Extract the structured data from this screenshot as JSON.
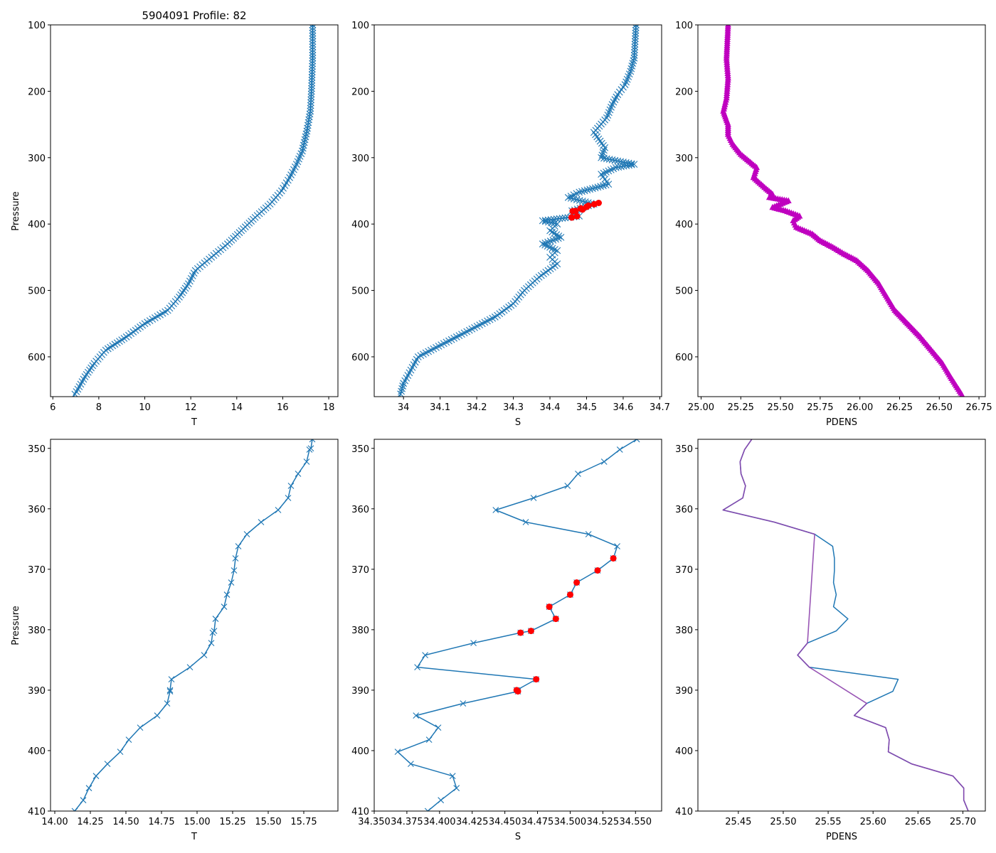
{
  "figure_title": "5904091 Profile: 82",
  "colors": {
    "series_blue": "#1f77b4",
    "red_points": "#ff0000",
    "magenta": "#bf00bf",
    "purple_line": "#8e44ad"
  },
  "chart_data": [
    {
      "id": "p1",
      "type": "line",
      "title": "5904091 Profile: 82",
      "xlabel": "T",
      "ylabel": "Pressure",
      "xlim": [
        5.9,
        18.4
      ],
      "ylim": [
        660,
        100
      ],
      "xticks": [
        6,
        8,
        10,
        12,
        14,
        16,
        18
      ],
      "yticks": [
        100,
        200,
        300,
        400,
        500,
        600
      ],
      "marker": "x",
      "series": [
        {
          "name": "T",
          "pressure": [
            100,
            150,
            200,
            230,
            260,
            290,
            310,
            330,
            350,
            370,
            390,
            410,
            430,
            450,
            470,
            490,
            510,
            530,
            550,
            570,
            590,
            610,
            630,
            660
          ],
          "values": [
            17.3,
            17.3,
            17.25,
            17.2,
            17.05,
            16.85,
            16.6,
            16.3,
            15.95,
            15.45,
            14.8,
            14.2,
            13.6,
            12.9,
            12.2,
            11.9,
            11.5,
            11.0,
            10.0,
            9.2,
            8.3,
            7.8,
            7.4,
            6.9
          ]
        }
      ]
    },
    {
      "id": "p2",
      "type": "line",
      "title": "",
      "xlabel": "S",
      "ylabel": "",
      "xlim": [
        33.92,
        34.705
      ],
      "ylim": [
        660,
        100
      ],
      "xticks": [
        34.0,
        34.1,
        34.2,
        34.3,
        34.4,
        34.5,
        34.6,
        34.7
      ],
      "yticks": [
        100,
        200,
        300,
        400,
        500,
        600
      ],
      "marker": "x",
      "series": [
        {
          "name": "S",
          "pressure": [
            100,
            150,
            170,
            190,
            205,
            220,
            240,
            262,
            285,
            300,
            310,
            315,
            325,
            340,
            352,
            360,
            370,
            380,
            388,
            395,
            400,
            410,
            420,
            430,
            440,
            450,
            460,
            480,
            500,
            520,
            540,
            560,
            580,
            600,
            620,
            640,
            660
          ],
          "values": [
            34.635,
            34.63,
            34.62,
            34.605,
            34.585,
            34.57,
            34.555,
            34.52,
            34.55,
            34.54,
            34.63,
            34.58,
            34.54,
            34.56,
            34.48,
            34.45,
            34.52,
            34.46,
            34.48,
            34.38,
            34.42,
            34.4,
            34.43,
            34.38,
            34.42,
            34.4,
            34.42,
            34.37,
            34.33,
            34.3,
            34.25,
            34.18,
            34.11,
            34.04,
            34.02,
            34.0,
            33.99
          ]
        },
        {
          "name": "red points",
          "pressure": [
            368.2,
            370.2,
            372.2,
            374.2,
            376.2,
            378.2,
            380.2,
            380.5,
            388.2,
            390.0,
            390.2
          ],
          "values": [
            34.533,
            34.521,
            34.505,
            34.5,
            34.484,
            34.489,
            34.47,
            34.462,
            34.474,
            34.459,
            34.46
          ]
        }
      ]
    },
    {
      "id": "p3",
      "type": "line",
      "title": "",
      "xlabel": "PDENS",
      "ylabel": "",
      "xlim": [
        24.98,
        26.79
      ],
      "ylim": [
        660,
        100
      ],
      "xticks": [
        25.0,
        25.25,
        25.5,
        25.75,
        26.0,
        26.25,
        26.5,
        26.75
      ],
      "xtick_labels": [
        "25.00",
        "25.25",
        "25.50",
        "25.75",
        "26.00",
        "26.25",
        "26.50",
        "26.75"
      ],
      "yticks": [
        100,
        200,
        300,
        400,
        500,
        600
      ],
      "marker": "^",
      "series": [
        {
          "name": "PDENS",
          "pressure": [
            100,
            150,
            180,
            210,
            230,
            250,
            265,
            280,
            295,
            305,
            315,
            330,
            345,
            355,
            360,
            365,
            375,
            380,
            388,
            395,
            405,
            415,
            425,
            435,
            445,
            455,
            470,
            490,
            510,
            530,
            550,
            570,
            590,
            610,
            630,
            660
          ],
          "values": [
            25.17,
            25.16,
            25.17,
            25.16,
            25.14,
            25.17,
            25.17,
            25.2,
            25.25,
            25.3,
            25.35,
            25.33,
            25.4,
            25.45,
            25.43,
            25.55,
            25.45,
            25.53,
            25.62,
            25.58,
            25.6,
            25.7,
            25.75,
            25.83,
            25.9,
            25.98,
            26.05,
            26.12,
            26.17,
            26.22,
            26.3,
            26.38,
            26.45,
            26.52,
            26.57,
            26.65
          ]
        }
      ]
    },
    {
      "id": "p4",
      "type": "line",
      "title": "",
      "xlabel": "T",
      "ylabel": "Pressure",
      "xlim": [
        13.97,
        15.99
      ],
      "ylim": [
        410,
        348.5
      ],
      "xticks": [
        14.0,
        14.25,
        14.5,
        14.75,
        15.0,
        15.25,
        15.5,
        15.75
      ],
      "xtick_labels": [
        "14.00",
        "14.25",
        "14.50",
        "14.75",
        "15.00",
        "15.25",
        "15.50",
        "15.75"
      ],
      "yticks": [
        350,
        360,
        370,
        380,
        390,
        400,
        410
      ],
      "marker": "x",
      "series": [
        {
          "name": "T",
          "pressure": [
            348.5,
            350.0,
            350.2,
            352.2,
            354.2,
            356.2,
            358.2,
            360.2,
            362.2,
            364.2,
            366.2,
            368.2,
            370.2,
            372.2,
            374.2,
            376.2,
            378.2,
            380.2,
            380.5,
            382.2,
            384.2,
            386.2,
            388.2,
            390.0,
            390.2,
            392.2,
            394.2,
            396.2,
            398.2,
            400.2,
            402.2,
            404.2,
            406.2,
            408.2,
            410.0
          ],
          "values": [
            15.81,
            15.8,
            15.79,
            15.77,
            15.71,
            15.66,
            15.64,
            15.57,
            15.45,
            15.35,
            15.29,
            15.27,
            15.26,
            15.24,
            15.21,
            15.19,
            15.13,
            15.12,
            15.11,
            15.1,
            15.05,
            14.95,
            14.82,
            14.81,
            14.81,
            14.79,
            14.72,
            14.6,
            14.52,
            14.46,
            14.37,
            14.29,
            14.24,
            14.2,
            14.14
          ]
        }
      ]
    },
    {
      "id": "p5",
      "type": "line",
      "title": "",
      "xlabel": "S",
      "ylabel": "",
      "xlim": [
        34.35,
        34.57
      ],
      "ylim": [
        410,
        348.5
      ],
      "xticks": [
        34.35,
        34.375,
        34.4,
        34.425,
        34.45,
        34.475,
        34.5,
        34.525,
        34.55
      ],
      "xtick_labels": [
        "34.350",
        "34.375",
        "34.400",
        "34.425",
        "34.450",
        "34.475",
        "34.500",
        "34.525",
        "34.550"
      ],
      "yticks": [
        350,
        360,
        370,
        380,
        390,
        400,
        410
      ],
      "marker": "x",
      "series": [
        {
          "name": "S",
          "pressure": [
            348.5,
            350.2,
            352.2,
            354.2,
            356.2,
            358.2,
            360.2,
            362.2,
            364.2,
            366.2,
            368.2,
            370.2,
            372.2,
            374.2,
            376.2,
            378.2,
            380.2,
            380.5,
            382.2,
            384.2,
            386.2,
            388.2,
            390.0,
            390.2,
            392.2,
            394.2,
            396.2,
            398.2,
            400.2,
            402.2,
            404.2,
            406.2,
            408.2,
            410.0
          ],
          "values": [
            34.551,
            34.538,
            34.526,
            34.506,
            34.498,
            34.472,
            34.443,
            34.466,
            34.514,
            34.536,
            34.533,
            34.521,
            34.505,
            34.5,
            34.484,
            34.489,
            34.47,
            34.462,
            34.426,
            34.389,
            34.383,
            34.474,
            34.459,
            34.46,
            34.418,
            34.382,
            34.399,
            34.392,
            34.368,
            34.378,
            34.41,
            34.413,
            34.401,
            34.391
          ]
        },
        {
          "name": "red points",
          "pressure": [
            368.2,
            370.2,
            372.2,
            374.2,
            376.2,
            378.2,
            380.2,
            380.5,
            388.2,
            390.0,
            390.2
          ],
          "values": [
            34.533,
            34.521,
            34.505,
            34.5,
            34.484,
            34.489,
            34.47,
            34.462,
            34.474,
            34.459,
            34.46
          ]
        }
      ]
    },
    {
      "id": "p6",
      "type": "line",
      "title": "",
      "xlabel": "PDENS",
      "ylabel": "",
      "xlim": [
        25.405,
        25.725
      ],
      "ylim": [
        410,
        348.5
      ],
      "xticks": [
        25.45,
        25.5,
        25.55,
        25.6,
        25.65,
        25.7
      ],
      "xtick_labels": [
        "25.45",
        "25.50",
        "25.55",
        "25.60",
        "25.65",
        "25.70"
      ],
      "yticks": [
        350,
        360,
        370,
        380,
        390,
        400,
        410
      ],
      "marker": "none",
      "series": [
        {
          "name": "PDENS",
          "pressure": [
            348.5,
            350.2,
            352.2,
            354.2,
            356.2,
            358.2,
            360.2,
            362.2,
            364.2,
            366.2,
            368.2,
            370.2,
            372.2,
            374.2,
            376.2,
            378.2,
            380.2,
            382.2,
            384.2,
            386.2,
            388.2,
            390.2,
            392.2,
            394.2,
            396.2,
            398.2,
            400.2,
            402.2,
            404.2,
            406.2,
            408.2,
            410.0
          ],
          "values": [
            25.465,
            25.457,
            25.452,
            25.453,
            25.458,
            25.455,
            25.433,
            25.49,
            25.535,
            25.555,
            25.557,
            25.557,
            25.556,
            25.559,
            25.556,
            25.572,
            25.559,
            25.527,
            25.516,
            25.529,
            25.628,
            25.622,
            25.593,
            25.579,
            25.614,
            25.618,
            25.617,
            25.643,
            25.689,
            25.701,
            25.701,
            25.706
          ]
        },
        {
          "name": "overlay",
          "pressure": [
            348.5,
            350.2,
            352.2,
            354.2,
            356.2,
            358.2,
            360.2,
            362.2,
            364.2,
            382.2,
            384.2,
            386.2,
            392.2,
            394.2,
            396.2,
            398.2,
            400.2,
            402.2,
            404.2,
            406.2,
            408.2,
            410.0
          ],
          "values": [
            25.465,
            25.457,
            25.452,
            25.453,
            25.458,
            25.455,
            25.433,
            25.49,
            25.535,
            25.527,
            25.516,
            25.529,
            25.593,
            25.579,
            25.614,
            25.618,
            25.617,
            25.643,
            25.689,
            25.701,
            25.701,
            25.706
          ]
        }
      ]
    }
  ]
}
